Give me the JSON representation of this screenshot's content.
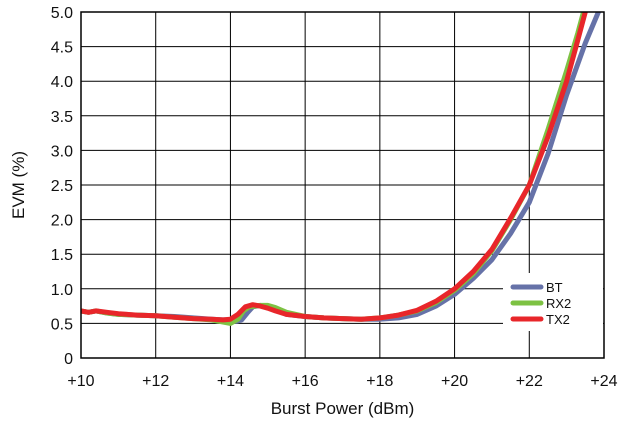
{
  "chart_data": {
    "type": "line",
    "title": "",
    "xlabel": "Burst Power (dBm)",
    "ylabel": "EVM (%)",
    "xlim": [
      10,
      24
    ],
    "ylim": [
      0,
      5.0
    ],
    "xticks": [
      {
        "value": 10,
        "label": "+10"
      },
      {
        "value": 12,
        "label": "+12"
      },
      {
        "value": 14,
        "label": "+14"
      },
      {
        "value": 16,
        "label": "+16"
      },
      {
        "value": 18,
        "label": "+18"
      },
      {
        "value": 20,
        "label": "+20"
      },
      {
        "value": 22,
        "label": "+22"
      },
      {
        "value": 24,
        "label": "+24"
      }
    ],
    "yticks": [
      {
        "value": 0,
        "label": "0"
      },
      {
        "value": 0.5,
        "label": "0.5"
      },
      {
        "value": 1.0,
        "label": "1.0"
      },
      {
        "value": 1.5,
        "label": "1.5"
      },
      {
        "value": 2.0,
        "label": "2.0"
      },
      {
        "value": 2.5,
        "label": "2.5"
      },
      {
        "value": 3.0,
        "label": "3.0"
      },
      {
        "value": 3.5,
        "label": "3.5"
      },
      {
        "value": 4.0,
        "label": "4.0"
      },
      {
        "value": 4.5,
        "label": "4.5"
      },
      {
        "value": 5.0,
        "label": "5.0"
      }
    ],
    "grid": true,
    "legend_position": "bottom-right",
    "series": [
      {
        "name": "BT",
        "color": "#6672a8",
        "points": [
          [
            10,
            0.68
          ],
          [
            10.2,
            0.66
          ],
          [
            10.4,
            0.68
          ],
          [
            10.7,
            0.65
          ],
          [
            11,
            0.63
          ],
          [
            11.5,
            0.62
          ],
          [
            12,
            0.61
          ],
          [
            12.5,
            0.6
          ],
          [
            13,
            0.58
          ],
          [
            13.5,
            0.56
          ],
          [
            13.8,
            0.55
          ],
          [
            14,
            0.55
          ],
          [
            14.15,
            0.53
          ],
          [
            14.3,
            0.55
          ],
          [
            14.45,
            0.65
          ],
          [
            14.6,
            0.74
          ],
          [
            14.8,
            0.76
          ],
          [
            15,
            0.74
          ],
          [
            15.2,
            0.7
          ],
          [
            15.5,
            0.63
          ],
          [
            16,
            0.6
          ],
          [
            16.5,
            0.58
          ],
          [
            17,
            0.57
          ],
          [
            17.5,
            0.56
          ],
          [
            18,
            0.56
          ],
          [
            18.5,
            0.58
          ],
          [
            19,
            0.63
          ],
          [
            19.5,
            0.75
          ],
          [
            20,
            0.92
          ],
          [
            20.5,
            1.15
          ],
          [
            21,
            1.42
          ],
          [
            21.5,
            1.8
          ],
          [
            22,
            2.25
          ],
          [
            22.5,
            2.95
          ],
          [
            23,
            3.8
          ],
          [
            23.5,
            4.55
          ],
          [
            23.85,
            5.0
          ]
        ]
      },
      {
        "name": "RX2",
        "color": "#7dc243",
        "points": [
          [
            10,
            0.68
          ],
          [
            10.2,
            0.66
          ],
          [
            10.4,
            0.68
          ],
          [
            10.7,
            0.65
          ],
          [
            11,
            0.63
          ],
          [
            11.5,
            0.62
          ],
          [
            12,
            0.61
          ],
          [
            12.5,
            0.59
          ],
          [
            13,
            0.57
          ],
          [
            13.5,
            0.55
          ],
          [
            13.8,
            0.52
          ],
          [
            14,
            0.5
          ],
          [
            14.2,
            0.56
          ],
          [
            14.35,
            0.68
          ],
          [
            14.5,
            0.74
          ],
          [
            14.8,
            0.76
          ],
          [
            15,
            0.76
          ],
          [
            15.2,
            0.73
          ],
          [
            15.5,
            0.66
          ],
          [
            16,
            0.6
          ],
          [
            16.5,
            0.58
          ],
          [
            17,
            0.57
          ],
          [
            17.5,
            0.56
          ],
          [
            18,
            0.58
          ],
          [
            18.5,
            0.62
          ],
          [
            19,
            0.68
          ],
          [
            19.5,
            0.8
          ],
          [
            20,
            0.98
          ],
          [
            20.5,
            1.22
          ],
          [
            21,
            1.55
          ],
          [
            21.5,
            2.0
          ],
          [
            22,
            2.5
          ],
          [
            22.5,
            3.3
          ],
          [
            23,
            4.15
          ],
          [
            23.3,
            4.7
          ],
          [
            23.45,
            5.0
          ]
        ]
      },
      {
        "name": "TX2",
        "color": "#e8262a",
        "points": [
          [
            10,
            0.68
          ],
          [
            10.2,
            0.66
          ],
          [
            10.4,
            0.68
          ],
          [
            10.7,
            0.66
          ],
          [
            11,
            0.64
          ],
          [
            11.5,
            0.62
          ],
          [
            12,
            0.61
          ],
          [
            12.5,
            0.59
          ],
          [
            13,
            0.57
          ],
          [
            13.5,
            0.56
          ],
          [
            13.8,
            0.55
          ],
          [
            14,
            0.56
          ],
          [
            14.2,
            0.63
          ],
          [
            14.4,
            0.74
          ],
          [
            14.6,
            0.77
          ],
          [
            14.8,
            0.75
          ],
          [
            15,
            0.72
          ],
          [
            15.2,
            0.68
          ],
          [
            15.5,
            0.63
          ],
          [
            16,
            0.6
          ],
          [
            16.5,
            0.58
          ],
          [
            17,
            0.57
          ],
          [
            17.5,
            0.56
          ],
          [
            18,
            0.58
          ],
          [
            18.5,
            0.62
          ],
          [
            19,
            0.69
          ],
          [
            19.5,
            0.82
          ],
          [
            20,
            1.0
          ],
          [
            20.5,
            1.25
          ],
          [
            21,
            1.57
          ],
          [
            21.5,
            2.02
          ],
          [
            22,
            2.5
          ],
          [
            22.5,
            3.2
          ],
          [
            23,
            4.0
          ],
          [
            23.3,
            4.6
          ],
          [
            23.5,
            5.0
          ]
        ]
      }
    ]
  }
}
